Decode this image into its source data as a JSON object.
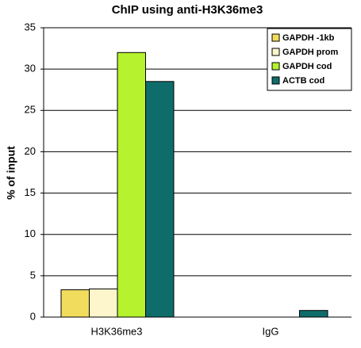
{
  "chart_data": {
    "type": "bar",
    "title": "ChIP using anti-H3K36me3",
    "y_label": "% of input",
    "categories": [
      "H3K36me3",
      "IgG"
    ],
    "series": [
      {
        "name": "GAPDH -1kb",
        "color": "#f2dc5d",
        "values": [
          3.3,
          0
        ]
      },
      {
        "name": "GAPDH prom",
        "color": "#fdf5cc",
        "values": [
          3.4,
          0
        ]
      },
      {
        "name": "GAPDH cod",
        "color": "#b6f22d",
        "values": [
          32,
          0
        ]
      },
      {
        "name": "ACTB cod",
        "color": "#0e6d6b",
        "values": [
          28.5,
          0.8
        ]
      }
    ],
    "ylim": [
      0,
      35
    ],
    "yticks": [
      0,
      5,
      10,
      15,
      20,
      25,
      30,
      35
    ],
    "grid": true,
    "legend": "top-right"
  }
}
